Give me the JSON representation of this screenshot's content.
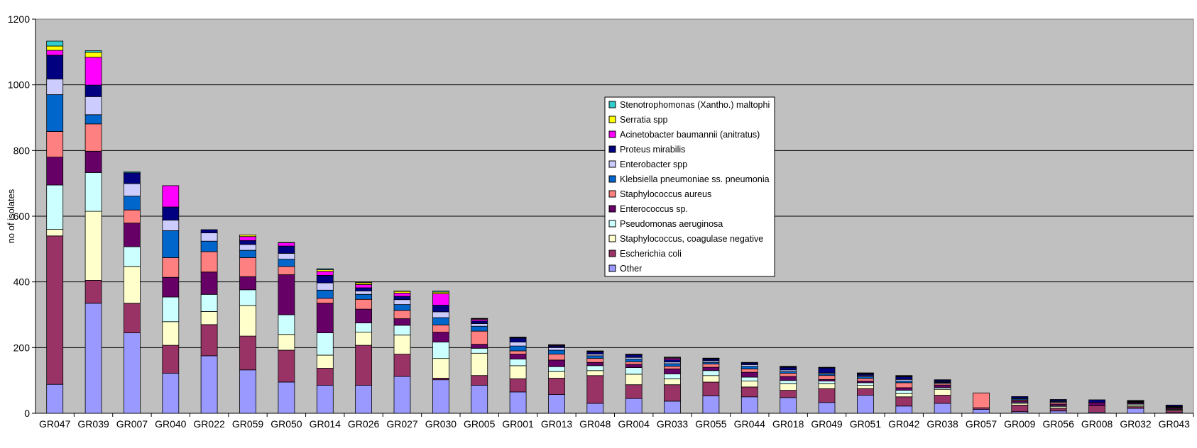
{
  "chart_data": {
    "type": "bar",
    "stacked": true,
    "title": "",
    "xlabel": "",
    "ylabel": "no of isolates",
    "ylim": [
      0,
      1200
    ],
    "yticks": [
      0,
      200,
      400,
      600,
      800,
      1000,
      1200
    ],
    "grid": true,
    "legend_position": "center-right",
    "plot_background": "#c0c0c0",
    "categories": [
      "GR047",
      "GR039",
      "GR007",
      "GR040",
      "GR022",
      "GR059",
      "GR050",
      "GR014",
      "GR026",
      "GR027",
      "GR030",
      "GR005",
      "GR001",
      "GR013",
      "GR048",
      "GR004",
      "GR033",
      "GR055",
      "GR044",
      "GR018",
      "GR049",
      "GR051",
      "GR042",
      "GR038",
      "GR057",
      "GR009",
      "GR056",
      "GR008",
      "GR032",
      "GR043"
    ],
    "series": [
      {
        "name": "Other",
        "color": "#9999ff",
        "values": [
          88,
          335,
          245,
          122,
          175,
          132,
          95,
          85,
          85,
          112,
          102,
          85,
          65,
          57,
          30,
          45,
          37,
          53,
          50,
          48,
          33,
          55,
          22,
          30,
          12,
          5,
          7,
          3,
          15,
          2
        ]
      },
      {
        "name": "Escherichia coli",
        "color": "#993366",
        "values": [
          452,
          70,
          90,
          85,
          95,
          103,
          97,
          52,
          122,
          68,
          5,
          30,
          40,
          50,
          85,
          42,
          50,
          42,
          30,
          22,
          42,
          20,
          28,
          25,
          5,
          20,
          8,
          20,
          5,
          6
        ]
      },
      {
        "name": "Staphylococcus, coagulase negative",
        "color": "#ffffcc",
        "values": [
          20,
          210,
          112,
          72,
          40,
          93,
          48,
          40,
          40,
          58,
          60,
          68,
          40,
          20,
          15,
          32,
          18,
          20,
          18,
          20,
          15,
          10,
          10,
          18,
          0,
          5,
          5,
          0,
          5,
          3
        ]
      },
      {
        "name": "Pseudomonas aeruginosa",
        "color": "#ccffff",
        "values": [
          135,
          118,
          60,
          75,
          52,
          48,
          60,
          68,
          28,
          30,
          50,
          15,
          20,
          15,
          15,
          20,
          15,
          15,
          12,
          10,
          8,
          8,
          10,
          5,
          0,
          3,
          3,
          0,
          3,
          2
        ]
      },
      {
        "name": "Enterococcus sp.",
        "color": "#660066",
        "values": [
          85,
          65,
          72,
          60,
          68,
          40,
          122,
          90,
          42,
          20,
          30,
          12,
          15,
          20,
          10,
          10,
          15,
          10,
          15,
          12,
          5,
          5,
          8,
          8,
          0,
          5,
          5,
          10,
          3,
          3
        ]
      },
      {
        "name": "Staphylococcus aureus",
        "color": "#ff8080",
        "values": [
          78,
          83,
          40,
          60,
          62,
          58,
          25,
          15,
          30,
          25,
          22,
          40,
          10,
          18,
          12,
          8,
          8,
          10,
          10,
          10,
          12,
          8,
          15,
          5,
          45,
          3,
          5,
          0,
          2,
          2
        ]
      },
      {
        "name": "Klebsiella pneumoniae ss. pneumonia",
        "color": "#0066cc",
        "values": [
          112,
          28,
          42,
          82,
          32,
          22,
          22,
          25,
          15,
          18,
          22,
          15,
          15,
          12,
          8,
          8,
          8,
          5,
          8,
          5,
          5,
          5,
          5,
          3,
          0,
          3,
          3,
          0,
          2,
          2
        ]
      },
      {
        "name": "Enterobacter spp",
        "color": "#ccccff",
        "values": [
          48,
          55,
          38,
          32,
          25,
          18,
          18,
          22,
          10,
          15,
          18,
          8,
          12,
          8,
          5,
          5,
          5,
          5,
          5,
          5,
          3,
          3,
          5,
          2,
          0,
          2,
          2,
          0,
          1,
          1
        ]
      },
      {
        "name": "Proteus mirabilis",
        "color": "#000080",
        "values": [
          72,
          35,
          33,
          40,
          10,
          12,
          22,
          23,
          10,
          10,
          20,
          8,
          12,
          5,
          7,
          8,
          7,
          5,
          5,
          8,
          15,
          5,
          8,
          5,
          0,
          5,
          4,
          8,
          2,
          4
        ]
      },
      {
        "name": "Acinetobacter baumannii (anitratus)",
        "color": "#ff00ff",
        "values": [
          15,
          85,
          0,
          65,
          0,
          12,
          10,
          12,
          10,
          10,
          35,
          5,
          2,
          2,
          1,
          0,
          4,
          1,
          0,
          1,
          0,
          2,
          1,
          0,
          0,
          0,
          0,
          0,
          0,
          0
        ]
      },
      {
        "name": "Serratia spp",
        "color": "#ffff00",
        "values": [
          13,
          15,
          0,
          0,
          0,
          5,
          0,
          5,
          5,
          5,
          5,
          2,
          1,
          1,
          1,
          1,
          2,
          1,
          1,
          1,
          1,
          1,
          2,
          1,
          0,
          0,
          0,
          0,
          1,
          0
        ]
      },
      {
        "name": "Stenotrophomonas (Xantho.) maltophi",
        "color": "#33cccc",
        "values": [
          15,
          5,
          3,
          0,
          0,
          0,
          1,
          3,
          1,
          1,
          3,
          1,
          0,
          1,
          1,
          1,
          2,
          1,
          1,
          1,
          1,
          1,
          1,
          0,
          0,
          0,
          0,
          0,
          0,
          0
        ]
      }
    ]
  }
}
